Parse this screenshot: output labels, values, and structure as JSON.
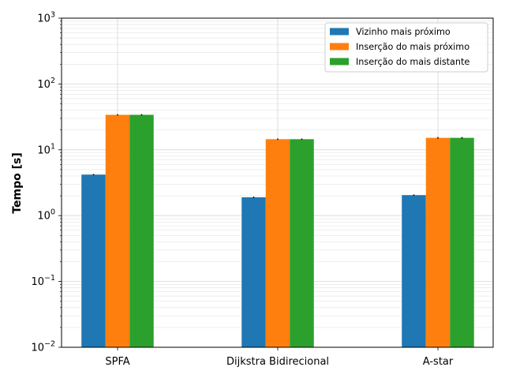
{
  "chart_data": {
    "type": "bar",
    "title": "",
    "xlabel": "",
    "ylabel": "Tempo [s]",
    "yscale": "log",
    "ylim": [
      0.01,
      1000
    ],
    "grid": true,
    "legend_position": "top-right",
    "categories": [
      "SPFA",
      "Dijkstra Bidirecional",
      "A-star"
    ],
    "series": [
      {
        "name": "Vizinho mais próximo",
        "color": "#1f77b4",
        "values": [
          4.2,
          1.9,
          2.05
        ],
        "errors": [
          0.06,
          0.03,
          0.04
        ]
      },
      {
        "name": "Inserção do mais próximo",
        "color": "#ff7f0e",
        "values": [
          34.0,
          14.5,
          15.2
        ],
        "errors": [
          0.4,
          0.2,
          0.4
        ]
      },
      {
        "name": "Inserção do mais distante",
        "color": "#2ca02c",
        "values": [
          34.0,
          14.5,
          15.2
        ],
        "errors": [
          0.4,
          0.2,
          0.4
        ]
      }
    ],
    "yticks": [
      {
        "value": 0.01,
        "base": "10",
        "exp": "−2"
      },
      {
        "value": 0.1,
        "base": "10",
        "exp": "−1"
      },
      {
        "value": 1,
        "base": "10",
        "exp": "0"
      },
      {
        "value": 10,
        "base": "10",
        "exp": "1"
      },
      {
        "value": 100,
        "base": "10",
        "exp": "2"
      },
      {
        "value": 1000,
        "base": "10",
        "exp": "3"
      }
    ]
  }
}
